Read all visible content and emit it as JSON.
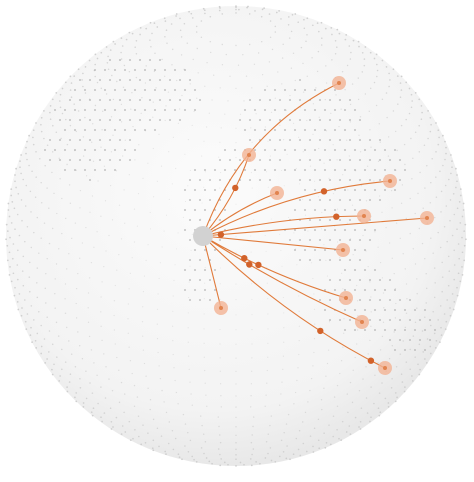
{
  "colors": {
    "background": "#ffffff",
    "globe_fill": "#f4f4f4",
    "grid_dot": "#c9c9c9",
    "land_dot": "#b3b3b3",
    "arc": "#e07a3a",
    "moving_dot": "#d2622a",
    "destination_halo": "#f2b393",
    "destination_core": "#e2844f",
    "origin": "#d2d2d2"
  },
  "connections": [
    {
      "id": "to-north-far"
    },
    {
      "id": "to-north-near"
    },
    {
      "id": "to-east-1"
    },
    {
      "id": "to-east-2"
    },
    {
      "id": "to-east-3"
    },
    {
      "id": "to-east-far"
    },
    {
      "id": "to-east-mid"
    },
    {
      "id": "to-southeast-1"
    },
    {
      "id": "to-southeast-2"
    },
    {
      "id": "to-southeast-far"
    },
    {
      "id": "to-south"
    }
  ]
}
